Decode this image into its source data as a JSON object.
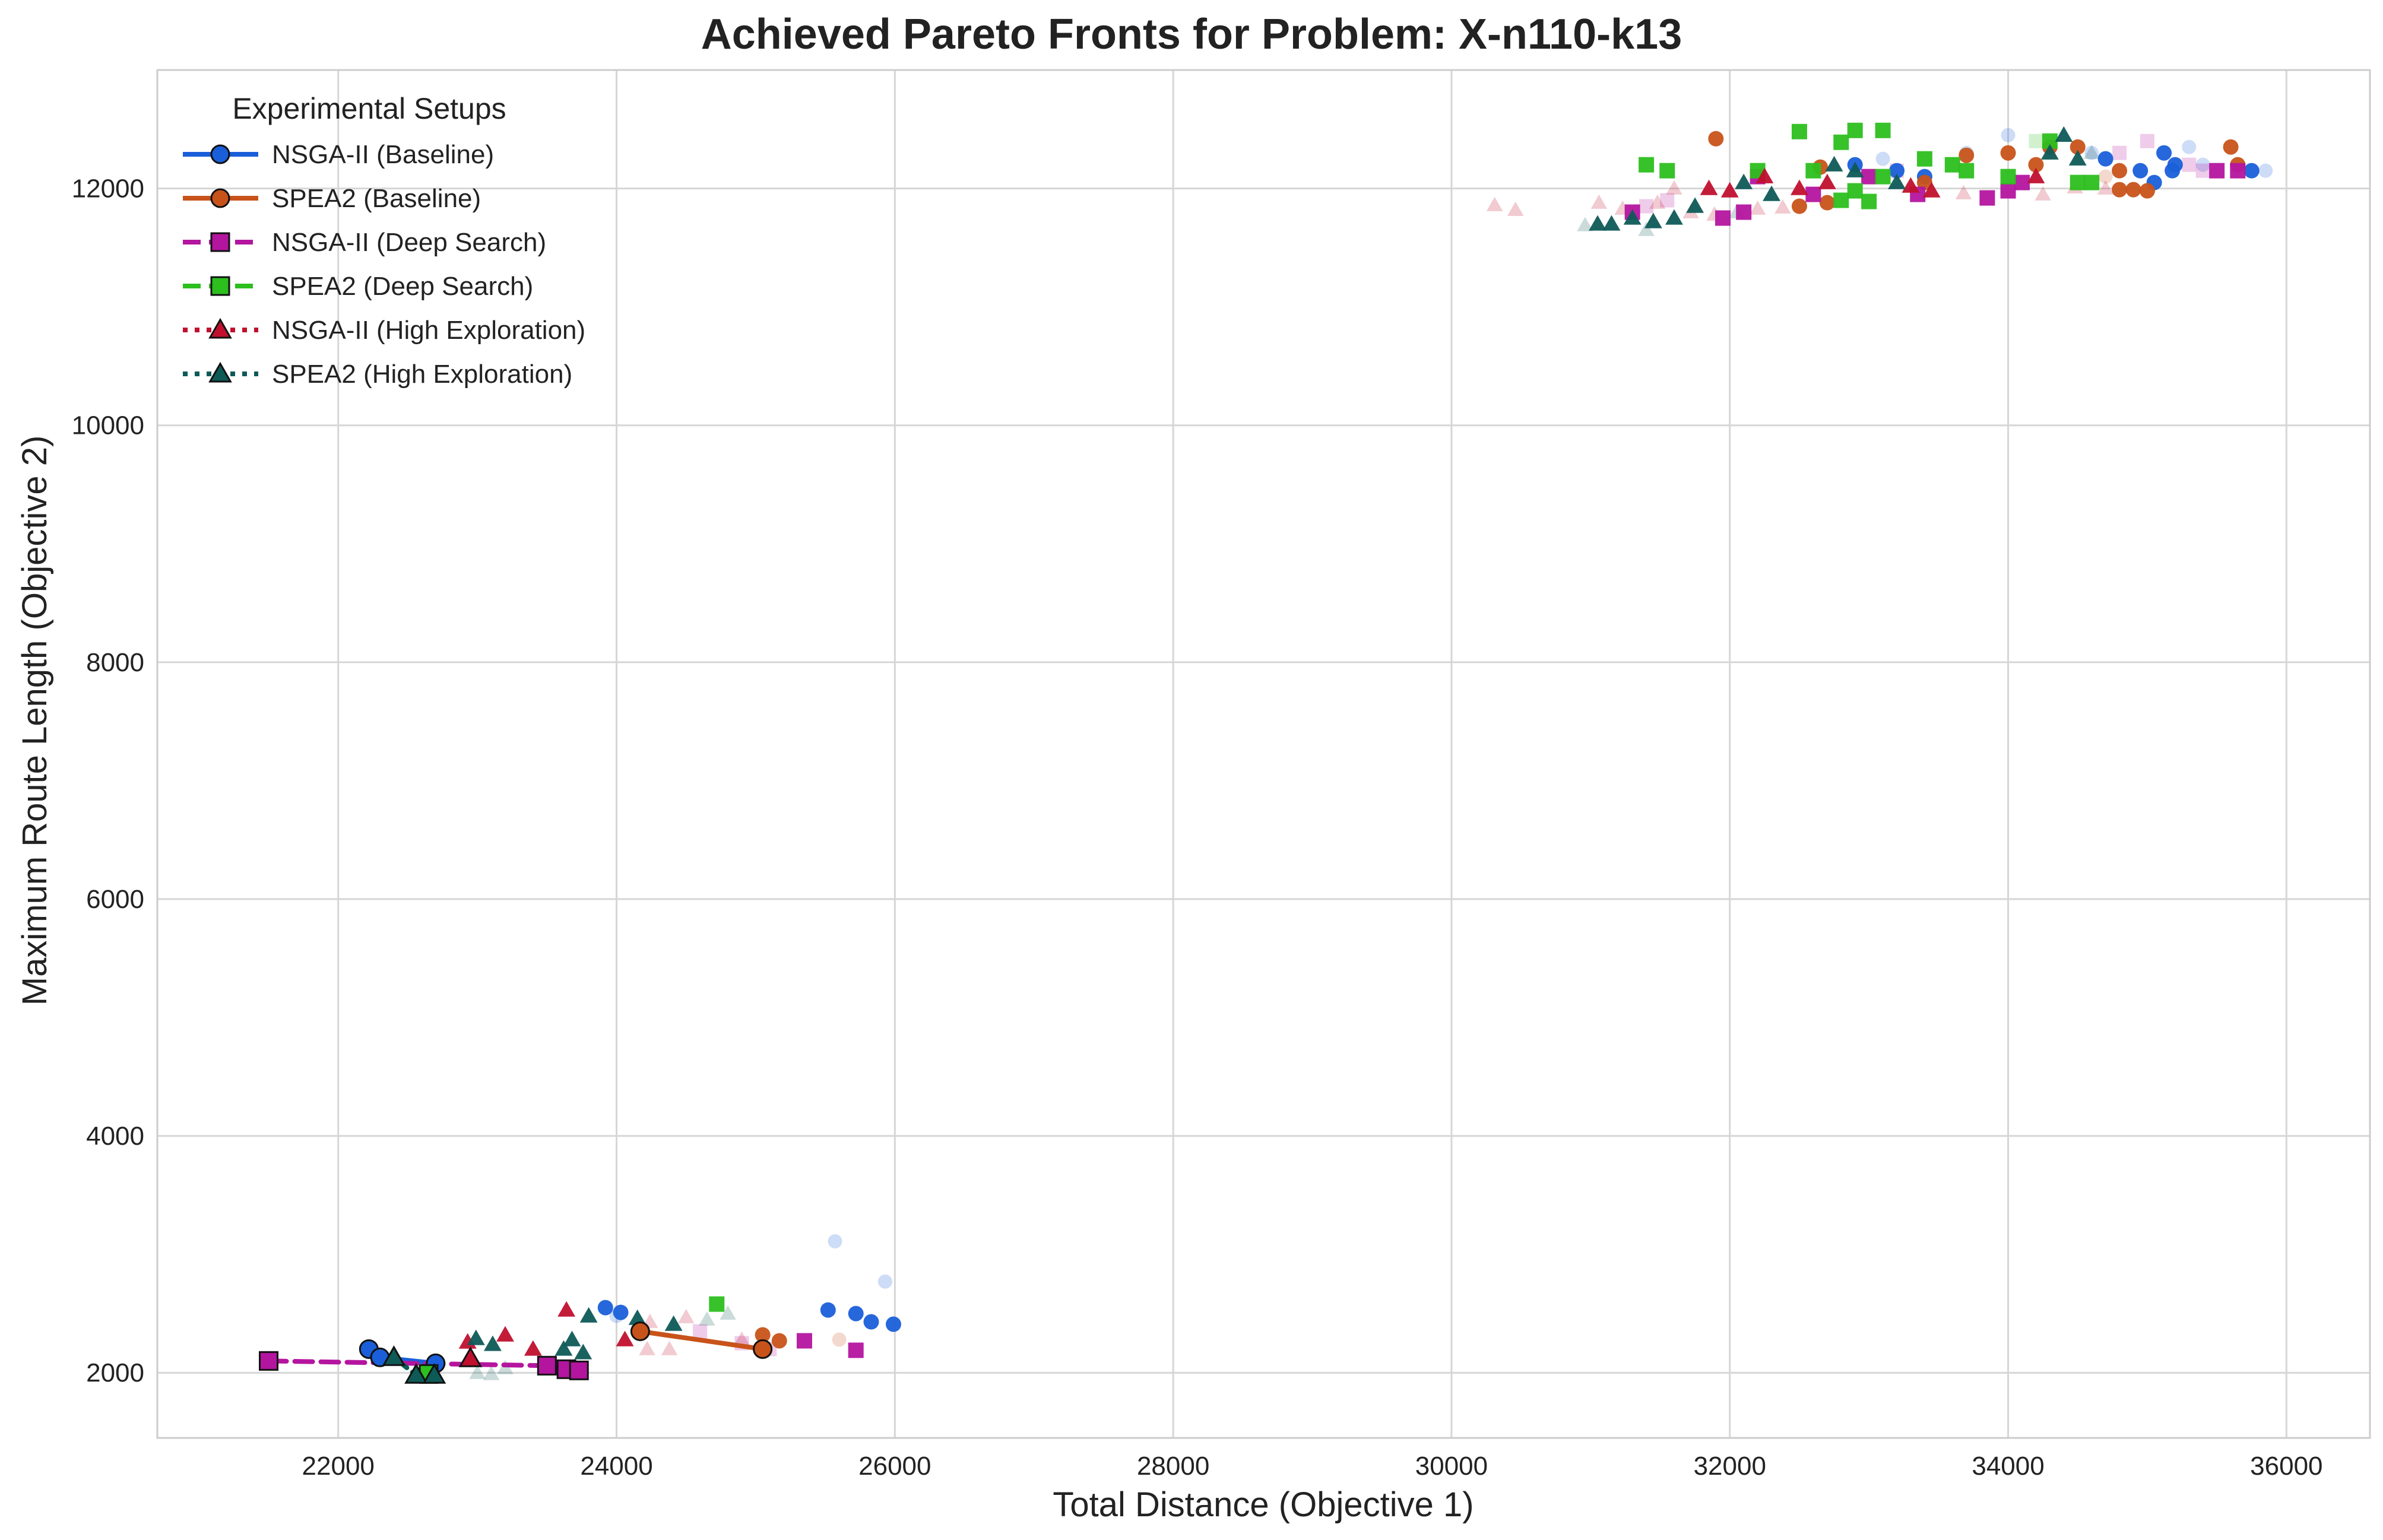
{
  "chart_data": {
    "type": "scatter",
    "title": "Achieved Pareto Fronts for Problem: X-n110-k13",
    "xlabel": "Total Distance (Objective 1)",
    "ylabel": "Maximum Route Length (Objective 2)",
    "xlim": [
      20700,
      36600
    ],
    "ylim": [
      1450,
      13000
    ],
    "xticks": [
      22000,
      24000,
      26000,
      28000,
      30000,
      32000,
      34000,
      36000
    ],
    "yticks": [
      2000,
      4000,
      6000,
      8000,
      10000,
      12000
    ],
    "grid": true,
    "legend": {
      "title": "Experimental Setups",
      "placement": "top-left"
    },
    "series": [
      {
        "name": "NSGA-II (Baseline)",
        "color": "#1a5fd9",
        "marker": "circle",
        "line": "solid",
        "front": [
          [
            22220,
            2200
          ],
          [
            22300,
            2130
          ],
          [
            22700,
            2080
          ]
        ],
        "points": [
          [
            25520,
            2530
          ],
          [
            25720,
            2500
          ],
          [
            25830,
            2430
          ],
          [
            25990,
            2410
          ],
          [
            23920,
            2550
          ],
          [
            24030,
            2510
          ],
          [
            32900,
            12200
          ],
          [
            33200,
            12150
          ],
          [
            33400,
            12100
          ],
          [
            34950,
            12150
          ],
          [
            35050,
            12050
          ],
          [
            35120,
            12300
          ],
          [
            35180,
            12150
          ],
          [
            35200,
            12200
          ],
          [
            35750,
            12150
          ],
          [
            34700,
            12250
          ]
        ],
        "faint": [
          [
            25570,
            3110
          ],
          [
            25930,
            2770
          ],
          [
            24000,
            2480
          ],
          [
            33700,
            12300
          ],
          [
            34000,
            12450
          ],
          [
            35300,
            12350
          ],
          [
            35850,
            12150
          ],
          [
            33100,
            12250
          ],
          [
            34600,
            12300
          ],
          [
            35400,
            12200
          ]
        ]
      },
      {
        "name": "SPEA2 (Baseline)",
        "color": "#c8531a",
        "marker": "circle",
        "line": "solid",
        "front": [
          [
            24170,
            2350
          ],
          [
            25050,
            2200
          ]
        ],
        "points": [
          [
            25050,
            2320
          ],
          [
            25170,
            2270
          ],
          [
            31900,
            12420
          ],
          [
            32500,
            11850
          ],
          [
            32700,
            11880
          ],
          [
            33400,
            12050
          ],
          [
            34000,
            12300
          ],
          [
            34200,
            12200
          ],
          [
            34300,
            12350
          ],
          [
            34500,
            12350
          ],
          [
            34800,
            12150
          ],
          [
            34800,
            11990
          ],
          [
            34900,
            11990
          ],
          [
            35000,
            11980
          ],
          [
            35600,
            12350
          ],
          [
            35650,
            12200
          ],
          [
            32650,
            12180
          ],
          [
            33700,
            12280
          ]
        ],
        "faint": [
          [
            25600,
            2280
          ],
          [
            34700,
            12100
          ]
        ]
      },
      {
        "name": "NSGA-II (Deep Search)",
        "color": "#b4159f",
        "marker": "square",
        "line": "dashed",
        "front": [
          [
            21500,
            2100
          ],
          [
            23500,
            2060
          ],
          [
            23640,
            2030
          ],
          [
            23730,
            2020
          ]
        ],
        "points": [
          [
            25350,
            2270
          ],
          [
            25720,
            2190
          ],
          [
            31950,
            11750
          ],
          [
            32100,
            11800
          ],
          [
            32200,
            12100
          ],
          [
            32600,
            11950
          ],
          [
            33000,
            12100
          ],
          [
            33350,
            11950
          ],
          [
            33850,
            11920
          ],
          [
            34000,
            11980
          ],
          [
            34100,
            12050
          ],
          [
            35500,
            12150
          ],
          [
            35650,
            12150
          ],
          [
            31300,
            11800
          ]
        ],
        "faint": [
          [
            24600,
            2350
          ],
          [
            24900,
            2250
          ],
          [
            25100,
            2200
          ],
          [
            31400,
            11850
          ],
          [
            31550,
            11900
          ],
          [
            35000,
            12400
          ],
          [
            34800,
            12300
          ],
          [
            35300,
            12200
          ],
          [
            35400,
            12150
          ],
          [
            33200,
            12150
          ]
        ]
      },
      {
        "name": "SPEA2 (Deep Search)",
        "color": "#2cbf1e",
        "marker": "square",
        "line": "dashed",
        "front": [
          [
            22650,
            1990
          ]
        ],
        "points": [
          [
            24720,
            2580
          ],
          [
            31400,
            12200
          ],
          [
            31550,
            12150
          ],
          [
            32500,
            12480
          ],
          [
            32800,
            12390
          ],
          [
            32900,
            12490
          ],
          [
            33100,
            12490
          ],
          [
            32200,
            12150
          ],
          [
            32600,
            12150
          ],
          [
            32800,
            11900
          ],
          [
            32900,
            11980
          ],
          [
            33000,
            11890
          ],
          [
            33400,
            12250
          ],
          [
            33600,
            12200
          ],
          [
            33700,
            12150
          ],
          [
            34000,
            12100
          ],
          [
            34300,
            12400
          ],
          [
            34500,
            12050
          ],
          [
            34600,
            12050
          ],
          [
            33100,
            12100
          ]
        ],
        "faint": [
          [
            34200,
            12400
          ]
        ]
      },
      {
        "name": "NSGA-II (High Exploration)",
        "color": "#c0102e",
        "marker": "triangle",
        "line": "dotted",
        "front": [
          [
            22950,
            2120
          ]
        ],
        "points": [
          [
            22930,
            2260
          ],
          [
            23640,
            2530
          ],
          [
            24060,
            2280
          ],
          [
            23400,
            2200
          ],
          [
            23200,
            2320
          ],
          [
            31850,
            12000
          ],
          [
            32000,
            11980
          ],
          [
            32250,
            12100
          ],
          [
            32500,
            12000
          ],
          [
            32700,
            12050
          ],
          [
            33300,
            12020
          ],
          [
            33450,
            11980
          ],
          [
            34200,
            12100
          ]
        ],
        "faint": [
          [
            24220,
            2200
          ],
          [
            24380,
            2200
          ],
          [
            24240,
            2430
          ],
          [
            24500,
            2470
          ],
          [
            24900,
            2280
          ],
          [
            30310,
            11860
          ],
          [
            30460,
            11820
          ],
          [
            31060,
            11880
          ],
          [
            31230,
            11830
          ],
          [
            31480,
            11880
          ],
          [
            31720,
            11800
          ],
          [
            31890,
            11780
          ],
          [
            32200,
            11830
          ],
          [
            32380,
            11840
          ],
          [
            33680,
            11960
          ],
          [
            34250,
            11950
          ],
          [
            34480,
            12010
          ],
          [
            34700,
            12000
          ],
          [
            31600,
            12000
          ]
        ]
      },
      {
        "name": "SPEA2 (High Exploration)",
        "color": "#0e5a57",
        "marker": "triangle",
        "line": "dotted",
        "front": [
          [
            22400,
            2130
          ],
          [
            22560,
            1980
          ],
          [
            22690,
            1980
          ]
        ],
        "points": [
          [
            22990,
            2290
          ],
          [
            23110,
            2240
          ],
          [
            23680,
            2280
          ],
          [
            23620,
            2200
          ],
          [
            23760,
            2170
          ],
          [
            23800,
            2480
          ],
          [
            24150,
            2460
          ],
          [
            24410,
            2410
          ],
          [
            31050,
            11700
          ],
          [
            31150,
            11700
          ],
          [
            31300,
            11750
          ],
          [
            31450,
            11720
          ],
          [
            31600,
            11750
          ],
          [
            31750,
            11850
          ],
          [
            32100,
            12050
          ],
          [
            32300,
            11950
          ],
          [
            32750,
            12200
          ],
          [
            32900,
            12150
          ],
          [
            33200,
            12050
          ],
          [
            34300,
            12300
          ],
          [
            34400,
            12450
          ],
          [
            34500,
            12250
          ]
        ],
        "faint": [
          [
            23000,
            2000
          ],
          [
            23100,
            1990
          ],
          [
            23200,
            2040
          ],
          [
            24650,
            2450
          ],
          [
            24800,
            2500
          ],
          [
            30960,
            11690
          ],
          [
            31400,
            11650
          ],
          [
            32050,
            11800
          ],
          [
            34600,
            12300
          ]
        ]
      }
    ]
  }
}
